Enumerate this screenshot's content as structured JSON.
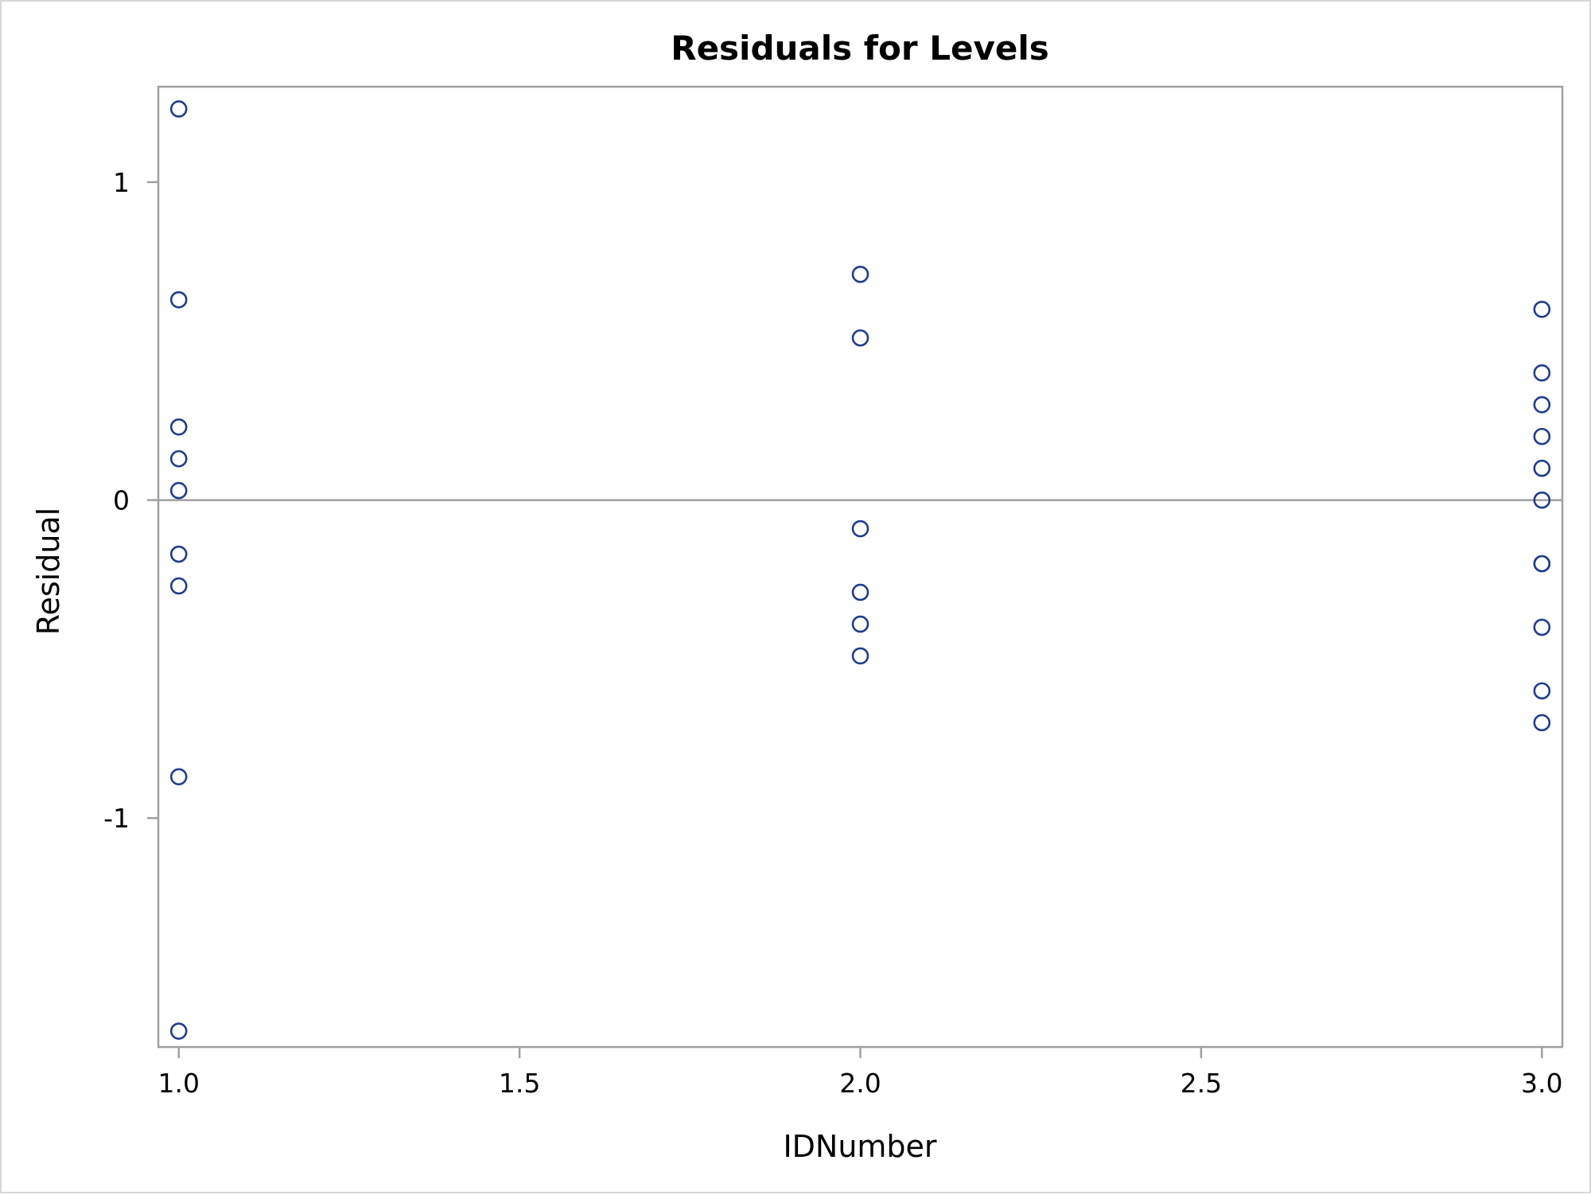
{
  "chart_data": {
    "type": "scatter",
    "title": "Residuals for Levels",
    "xlabel": "IDNumber",
    "ylabel": "Residual",
    "xlim": [
      0.97,
      3.03
    ],
    "ylim": [
      -1.72,
      1.3
    ],
    "x_ticks": [
      1.0,
      1.5,
      2.0,
      2.5,
      3.0
    ],
    "x_tick_labels": [
      "1.0",
      "1.5",
      "2.0",
      "2.5",
      "3.0"
    ],
    "y_ticks": [
      1,
      0,
      -1
    ],
    "y_tick_labels": [
      "1",
      "0",
      "-1"
    ],
    "reference_line_y": 0,
    "grid": false,
    "legend": "none",
    "marker_color": "#1f3d8f",
    "axis_color": "#a0a0a0",
    "series": [
      {
        "x": [
          1,
          1,
          1,
          1,
          1,
          1,
          1,
          1,
          1,
          2,
          2,
          2,
          2,
          2,
          2,
          3,
          3,
          3,
          3,
          3,
          3,
          3,
          3,
          3,
          3,
          3
        ],
        "y": [
          1.23,
          0.63,
          0.23,
          0.13,
          0.03,
          -0.17,
          -0.27,
          -0.87,
          -1.67,
          0.71,
          0.51,
          -0.09,
          -0.29,
          -0.39,
          -0.49,
          0.6,
          0.4,
          0.3,
          0.2,
          0.1,
          0.0,
          -0.2,
          -0.2,
          -0.4,
          -0.6,
          -0.7
        ]
      }
    ]
  }
}
